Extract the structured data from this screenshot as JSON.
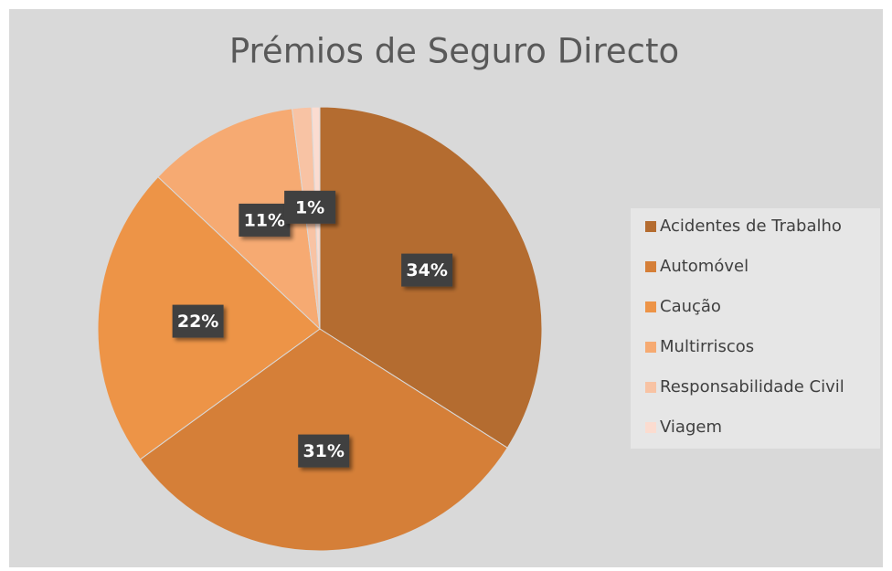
{
  "chart_data": {
    "type": "pie",
    "title": "Prémios de Seguro Directo",
    "categories": [
      "Acidentes de Trabalho",
      "Automóvel",
      "Caução",
      "Multirriscos",
      "Responsabilidade Civil",
      "Viagem"
    ],
    "values": [
      34,
      31,
      22,
      11,
      1.4,
      0.6
    ],
    "value_labels": [
      "34%",
      "31%",
      "22%",
      "11%",
      "1%",
      null
    ],
    "colors": [
      "#b46c30",
      "#d57f38",
      "#ed9447",
      "#f6aa72",
      "#f8c3a4",
      "#fbdcd0"
    ],
    "legend": "right"
  }
}
